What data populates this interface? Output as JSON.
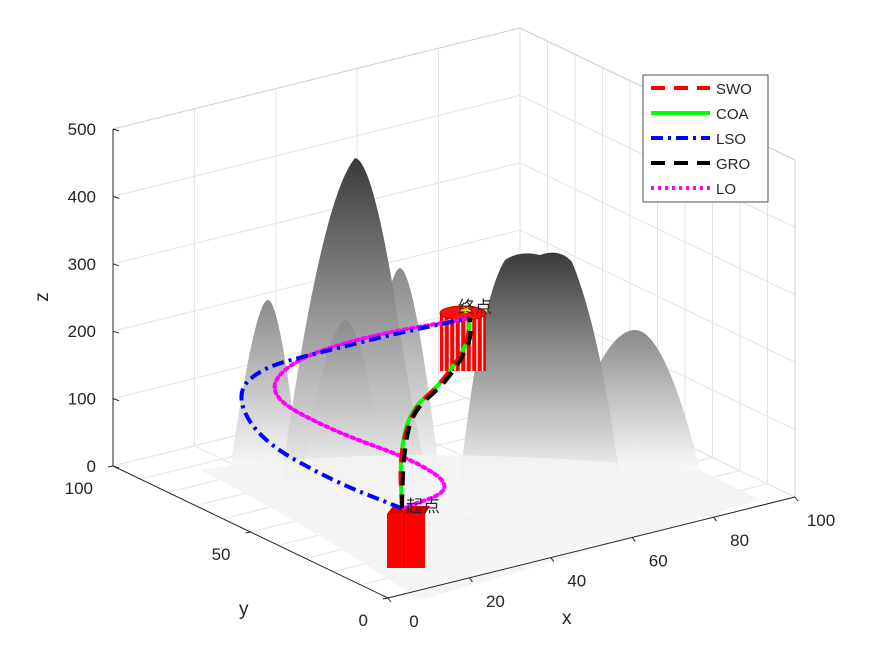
{
  "chart_data": {
    "type": "line3d",
    "title": "",
    "xlabel": "x",
    "ylabel": "y",
    "zlabel": "z",
    "xlim": [
      0,
      100
    ],
    "ylim": [
      0,
      100
    ],
    "zlim": [
      0,
      500
    ],
    "xticks": [
      "0",
      "20",
      "40",
      "60",
      "80",
      "100"
    ],
    "yticks": [
      "0",
      "50",
      "100"
    ],
    "zticks": [
      "0",
      "100",
      "200",
      "300",
      "400",
      "500"
    ],
    "grid": true,
    "legend_position": "top-right",
    "start_label": "起点",
    "end_label": "终点",
    "start": [
      6.8,
      5,
      113
    ],
    "end": [
      67.4,
      70,
      177
    ],
    "series": [
      {
        "name": "SWO",
        "color": "#ff0000",
        "style": "dashed",
        "points": [
          [
            6.8,
            5,
            113
          ],
          [
            17,
            21,
            145
          ],
          [
            29,
            34,
            170
          ],
          [
            45,
            47,
            160
          ],
          [
            60,
            60,
            168
          ],
          [
            67.4,
            70,
            177
          ]
        ]
      },
      {
        "name": "COA",
        "color": "#00ff00",
        "style": "solid",
        "points": [
          [
            6.8,
            5,
            113
          ],
          [
            17.1,
            21,
            145
          ],
          [
            28.4,
            34,
            170
          ],
          [
            44.5,
            47,
            157
          ],
          [
            60.2,
            60,
            168
          ],
          [
            67.4,
            70,
            177
          ]
        ]
      },
      {
        "name": "LSO",
        "color": "#0000ff",
        "style": "dashdot",
        "points": [
          [
            6.8,
            5,
            113
          ],
          [
            3,
            25,
            121
          ],
          [
            3,
            51,
            130
          ],
          [
            5,
            63,
            171
          ],
          [
            10,
            61,
            207
          ],
          [
            20,
            54,
            229
          ],
          [
            40,
            55,
            226
          ],
          [
            67.4,
            70,
            177
          ]
        ]
      },
      {
        "name": "GRO",
        "color": "#000000",
        "style": "dashed",
        "points": [
          [
            6.8,
            5,
            113
          ],
          [
            18,
            21,
            146
          ],
          [
            29,
            34,
            168
          ],
          [
            46,
            47,
            158
          ],
          [
            61,
            60,
            170
          ],
          [
            67.4,
            70,
            177
          ]
        ]
      },
      {
        "name": "LO",
        "color": "#ff00ff",
        "style": "dotted",
        "points": [
          [
            6.8,
            5,
            113
          ],
          [
            19.8,
            5,
            121
          ],
          [
            18,
            15,
            145
          ],
          [
            5,
            28.5,
            186
          ],
          [
            5,
            52,
            193
          ],
          [
            10,
            50,
            240
          ],
          [
            30,
            51,
            245
          ],
          [
            67.4,
            70,
            177
          ]
        ]
      }
    ]
  }
}
